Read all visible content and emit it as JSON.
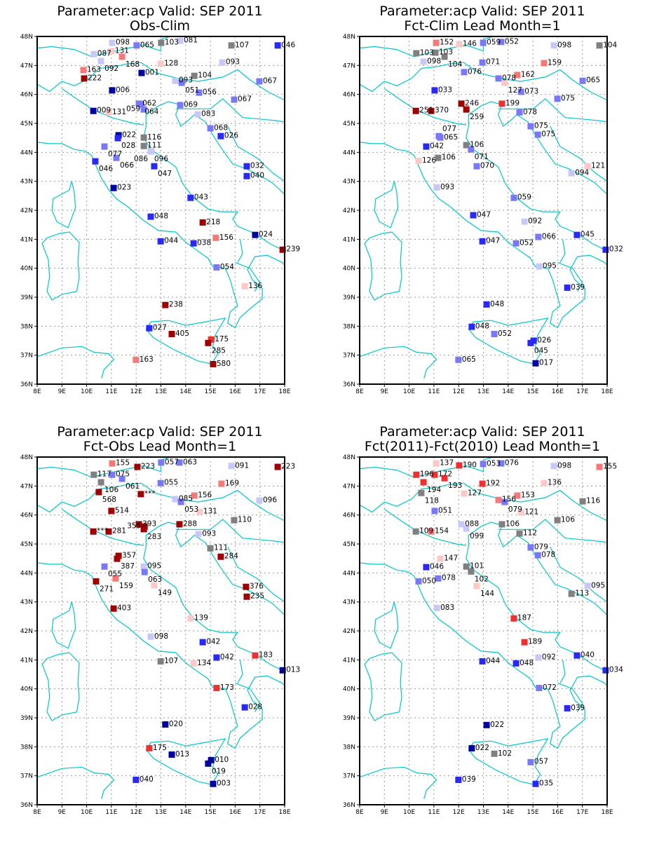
{
  "color_scale": {
    "thresholds": [
      25,
      50,
      80,
      100,
      120,
      150,
      170,
      200
    ],
    "colors": [
      "#0000a0",
      "#2828f8",
      "#7878f8",
      "#c8c8f8",
      "#808080",
      "#fcc8c8",
      "#f87878",
      "#f03030",
      "#a00000"
    ],
    "coast_color": "#00c8c8",
    "grid_color": "#999999"
  },
  "axes": {
    "lon_labels": [
      "8E",
      "9E",
      "10E",
      "11E",
      "12E",
      "13E",
      "14E",
      "15E",
      "16E",
      "17E",
      "18E"
    ],
    "lat_labels": [
      "36N",
      "37N",
      "38N",
      "39N",
      "40N",
      "41N",
      "42N",
      "43N",
      "44N",
      "45N",
      "46N",
      "47N",
      "48N"
    ]
  },
  "panels": [
    {
      "title1": "Parameter:acp Valid: SEP 2011",
      "title2": "Obs-Clim",
      "stations": [
        [
          "098",
          11.03,
          47.78
        ],
        [
          "065",
          12.02,
          47.69
        ],
        [
          "103",
          13.01,
          47.78
        ],
        [
          "081",
          13.78,
          47.85
        ],
        [
          "107",
          15.85,
          47.69
        ],
        [
          "046",
          17.72,
          47.69
        ],
        [
          "087",
          10.29,
          47.39
        ],
        [
          "131",
          11.0,
          47.49
        ],
        [
          "092",
          10.58,
          47.15
        ],
        [
          "168",
          11.43,
          47.3
        ],
        [
          "128",
          12.99,
          47.06
        ],
        [
          "093",
          15.48,
          47.1
        ],
        [
          "163",
          9.87,
          46.84
        ],
        [
          "001",
          12.22,
          46.74
        ],
        [
          "104",
          14.35,
          46.64
        ],
        [
          "222",
          9.9,
          46.55
        ],
        [
          "093",
          13.58,
          46.47
        ],
        [
          "051",
          13.84,
          46.4
        ],
        [
          "067",
          16.98,
          46.45
        ],
        [
          "006",
          11.03,
          46.14
        ],
        [
          "056",
          14.54,
          46.06
        ],
        [
          "067",
          15.96,
          45.82
        ],
        [
          "009",
          10.27,
          45.43
        ],
        [
          "131",
          10.89,
          45.38
        ],
        [
          "062",
          12.11,
          45.68
        ],
        [
          "064",
          12.2,
          45.66
        ],
        [
          "059",
          12.31,
          45.48
        ],
        [
          "069",
          13.78,
          45.63
        ],
        [
          "083",
          14.49,
          45.31
        ],
        [
          "068",
          15.0,
          44.83
        ],
        [
          "026",
          15.42,
          44.56
        ],
        [
          "022",
          11.29,
          44.59
        ],
        [
          "028",
          11.26,
          44.49
        ],
        [
          "116",
          12.31,
          44.51
        ],
        [
          "077",
          10.72,
          44.2
        ],
        [
          "111",
          12.31,
          44.22
        ],
        [
          "096",
          12.59,
          44.03
        ],
        [
          "086",
          12.62,
          44.03
        ],
        [
          "066",
          11.2,
          43.81
        ],
        [
          "046",
          10.35,
          43.69
        ],
        [
          "047",
          12.73,
          43.52
        ],
        [
          "032",
          16.47,
          43.52
        ],
        [
          "040",
          16.47,
          43.18
        ],
        [
          "023",
          11.09,
          42.77
        ],
        [
          "043",
          14.2,
          42.43
        ],
        [
          "048",
          12.59,
          41.78
        ],
        [
          "218",
          14.69,
          41.58
        ],
        [
          "156",
          15.22,
          41.05
        ],
        [
          "024",
          16.81,
          41.15
        ],
        [
          "239",
          17.92,
          40.64
        ],
        [
          "044",
          12.99,
          40.93
        ],
        [
          "038",
          14.32,
          40.86
        ],
        [
          "054",
          15.25,
          40.03
        ],
        [
          "136",
          16.39,
          39.38
        ],
        [
          "238",
          13.18,
          38.73
        ],
        [
          "027",
          12.53,
          37.93
        ],
        [
          "405",
          13.44,
          37.73
        ],
        [
          "175",
          15.03,
          37.54
        ],
        [
          "285",
          14.91,
          37.42
        ],
        [
          "163",
          11.99,
          36.84
        ],
        [
          "580",
          15.11,
          36.69
        ]
      ]
    },
    {
      "title1": "Parameter:acp Valid: SEP 2011",
      "title2": "Fct-Clim Lead Month=1",
      "stations": [
        [
          "152",
          11.09,
          47.78
        ],
        [
          "146",
          12.02,
          47.73
        ],
        [
          "059",
          12.99,
          47.78
        ],
        [
          "052",
          13.72,
          47.81
        ],
        [
          "098",
          15.85,
          47.69
        ],
        [
          "104",
          17.69,
          47.69
        ],
        [
          "103",
          10.29,
          47.42
        ],
        [
          "103",
          11.06,
          47.44
        ],
        [
          "104",
          11.43,
          47.3
        ],
        [
          "098",
          10.58,
          47.13
        ],
        [
          "071",
          12.96,
          47.1
        ],
        [
          "159",
          15.45,
          47.08
        ],
        [
          "076",
          12.22,
          46.77
        ],
        [
          "162",
          14.37,
          46.67
        ],
        [
          "078",
          13.61,
          46.55
        ],
        [
          "127",
          13.86,
          46.4
        ],
        [
          "065",
          17.01,
          46.47
        ],
        [
          "033",
          11.03,
          46.14
        ],
        [
          "073",
          14.52,
          46.09
        ],
        [
          "075",
          15.99,
          45.85
        ],
        [
          "251",
          10.27,
          45.43
        ],
        [
          "370",
          10.89,
          45.43
        ],
        [
          "246",
          12.11,
          45.68
        ],
        [
          "259",
          12.31,
          45.48
        ],
        [
          "199",
          13.75,
          45.68
        ],
        [
          "078",
          14.46,
          45.38
        ],
        [
          "075",
          14.91,
          44.9
        ],
        [
          "075",
          15.2,
          44.61
        ],
        [
          "065",
          11.26,
          44.51
        ],
        [
          "077",
          11.2,
          44.56
        ],
        [
          "042",
          10.69,
          44.2
        ],
        [
          "106",
          12.31,
          44.25
        ],
        [
          "071",
          12.5,
          44.1
        ],
        [
          "126",
          10.38,
          43.71
        ],
        [
          "106",
          11.17,
          43.81
        ],
        [
          "070",
          12.73,
          43.52
        ],
        [
          "121",
          17.21,
          43.52
        ],
        [
          "094",
          16.56,
          43.28
        ],
        [
          "093",
          11.12,
          42.79
        ],
        [
          "059",
          14.23,
          42.43
        ],
        [
          "047",
          12.59,
          41.83
        ],
        [
          "092",
          14.66,
          41.61
        ],
        [
          "066",
          15.22,
          41.08
        ],
        [
          "045",
          16.78,
          41.15
        ],
        [
          "047",
          12.96,
          40.93
        ],
        [
          "052",
          14.32,
          40.86
        ],
        [
          "032",
          17.94,
          40.64
        ],
        [
          "095",
          15.25,
          40.06
        ],
        [
          "039",
          16.39,
          39.33
        ],
        [
          "048",
          13.13,
          38.75
        ],
        [
          "048",
          12.53,
          37.98
        ],
        [
          "052",
          13.44,
          37.73
        ],
        [
          "026",
          15.03,
          37.5
        ],
        [
          "045",
          14.91,
          37.42
        ],
        [
          "017",
          15.11,
          36.72
        ],
        [
          "065",
          11.99,
          36.84
        ]
      ]
    },
    {
      "title1": "Parameter:acp Valid: SEP 2011",
      "title2": "Fct-Obs Lead Month=1",
      "stations": [
        [
          "155",
          11.03,
          47.78
        ],
        [
          "223",
          12.05,
          47.66
        ],
        [
          "057",
          13.01,
          47.81
        ],
        [
          "063",
          13.75,
          47.81
        ],
        [
          "091",
          15.85,
          47.69
        ],
        [
          "223",
          17.72,
          47.66
        ],
        [
          "117",
          10.29,
          47.39
        ],
        [
          "075",
          11.03,
          47.39
        ],
        [
          "061",
          11.43,
          47.25
        ],
        [
          "106",
          10.58,
          47.13
        ],
        [
          "055",
          12.99,
          47.1
        ],
        [
          "169",
          15.45,
          47.08
        ],
        [
          "156",
          14.35,
          46.67
        ],
        [
          "***",
          12.19,
          46.72
        ],
        [
          "568",
          10.49,
          46.79
        ],
        [
          "085",
          13.58,
          46.55
        ],
        [
          "053",
          13.81,
          46.45
        ],
        [
          "096",
          16.98,
          46.5
        ],
        [
          "514",
          11.0,
          46.14
        ],
        [
          "131",
          14.57,
          46.11
        ],
        [
          "110",
          15.96,
          45.82
        ],
        [
          "***",
          10.27,
          45.43
        ],
        [
          "281",
          10.89,
          45.43
        ],
        [
          "393",
          12.11,
          45.68
        ],
        [
          "283",
          12.31,
          45.51
        ],
        [
          "355",
          12.34,
          45.6
        ],
        [
          "288",
          13.75,
          45.68
        ],
        [
          "093",
          14.52,
          45.34
        ],
        [
          "111",
          15.0,
          44.85
        ],
        [
          "284",
          15.42,
          44.56
        ],
        [
          "357",
          11.29,
          44.59
        ],
        [
          "387",
          11.23,
          44.49
        ],
        [
          "095",
          12.31,
          44.22
        ],
        [
          "063",
          12.34,
          44.03
        ],
        [
          "055",
          10.72,
          44.22
        ],
        [
          "159",
          11.17,
          43.81
        ],
        [
          "149",
          12.73,
          43.57
        ],
        [
          "271",
          10.38,
          43.71
        ],
        [
          "376",
          16.44,
          43.52
        ],
        [
          "235",
          16.47,
          43.18
        ],
        [
          "403",
          11.09,
          42.77
        ],
        [
          "139",
          14.2,
          42.43
        ],
        [
          "098",
          12.59,
          41.8
        ],
        [
          "042",
          14.69,
          41.61
        ],
        [
          "042",
          15.25,
          41.08
        ],
        [
          "183",
          16.81,
          41.15
        ],
        [
          "013",
          17.92,
          40.64
        ],
        [
          "107",
          12.99,
          40.95
        ],
        [
          "134",
          14.32,
          40.88
        ],
        [
          "173",
          15.25,
          40.03
        ],
        [
          "028",
          16.39,
          39.36
        ],
        [
          "020",
          13.18,
          38.77
        ],
        [
          "175",
          12.53,
          37.95
        ],
        [
          "013",
          13.44,
          37.73
        ],
        [
          "010",
          15.03,
          37.54
        ],
        [
          "019",
          14.91,
          37.42
        ],
        [
          "003",
          15.11,
          36.72
        ],
        [
          "040",
          11.99,
          36.86
        ]
      ]
    },
    {
      "title1": "Parameter:acp Valid: SEP 2011",
      "title2": "Fct(2011)-Fct(2010) Lead Month=1",
      "stations": [
        [
          "137",
          11.09,
          47.78
        ],
        [
          "190",
          12.02,
          47.71
        ],
        [
          "053",
          12.99,
          47.76
        ],
        [
          "076",
          13.72,
          47.78
        ],
        [
          "098",
          15.85,
          47.69
        ],
        [
          "155",
          17.69,
          47.66
        ],
        [
          "196",
          10.29,
          47.39
        ],
        [
          "172",
          11.03,
          47.39
        ],
        [
          "194",
          10.58,
          47.13
        ],
        [
          "193",
          11.43,
          47.27
        ],
        [
          "192",
          12.96,
          47.08
        ],
        [
          "136",
          15.45,
          47.1
        ],
        [
          "118",
          10.49,
          46.76
        ],
        [
          "127",
          12.22,
          46.74
        ],
        [
          "153",
          14.37,
          46.67
        ],
        [
          "156",
          13.61,
          46.52
        ],
        [
          "079",
          13.86,
          46.45
        ],
        [
          "116",
          17.01,
          46.47
        ],
        [
          "051",
          11.03,
          46.14
        ],
        [
          "121",
          14.52,
          46.09
        ],
        [
          "106",
          15.99,
          45.82
        ],
        [
          "109",
          10.27,
          45.43
        ],
        [
          "154",
          10.89,
          45.43
        ],
        [
          "088",
          12.11,
          45.68
        ],
        [
          "099",
          12.31,
          45.53
        ],
        [
          "106",
          13.75,
          45.68
        ],
        [
          "112",
          14.46,
          45.36
        ],
        [
          "079",
          14.91,
          44.88
        ],
        [
          "078",
          15.2,
          44.61
        ],
        [
          "147",
          11.26,
          44.49
        ],
        [
          "046",
          10.69,
          44.2
        ],
        [
          "101",
          12.31,
          44.22
        ],
        [
          "102",
          12.5,
          44.05
        ],
        [
          "050",
          10.38,
          43.71
        ],
        [
          "078",
          11.17,
          43.81
        ],
        [
          "144",
          12.73,
          43.55
        ],
        [
          "095",
          17.21,
          43.55
        ],
        [
          "113",
          16.56,
          43.28
        ],
        [
          "083",
          11.12,
          42.79
        ],
        [
          "187",
          14.23,
          42.43
        ],
        [
          "189",
          14.66,
          41.61
        ],
        [
          "092",
          15.22,
          41.08
        ],
        [
          "040",
          16.78,
          41.15
        ],
        [
          "044",
          12.96,
          40.95
        ],
        [
          "048",
          14.32,
          40.88
        ],
        [
          "034",
          17.94,
          40.64
        ],
        [
          "072",
          15.25,
          40.03
        ],
        [
          "039",
          16.39,
          39.33
        ],
        [
          "022",
          13.13,
          38.75
        ],
        [
          "022",
          12.53,
          37.95
        ],
        [
          "102",
          13.44,
          37.76
        ],
        [
          "057",
          14.91,
          37.47
        ],
        [
          "035",
          15.11,
          36.72
        ],
        [
          "039",
          11.99,
          36.86
        ]
      ]
    }
  ]
}
